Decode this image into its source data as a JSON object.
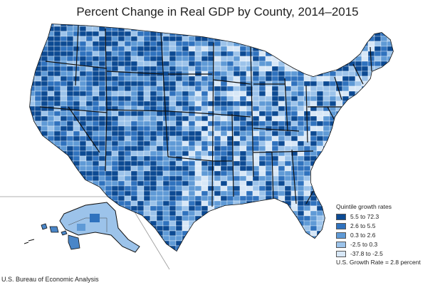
{
  "title": "Percent Change in Real GDP by County, 2014–2015",
  "source": "U.S. Bureau of Economic Analysis",
  "legend": {
    "heading": "Quintile growth rates",
    "items": [
      {
        "label": "5.5 to 72.3",
        "color": "#0c4a93"
      },
      {
        "label": "2.6 to 5.5",
        "color": "#2f72be"
      },
      {
        "label": "0.3 to 2.6",
        "color": "#5f9ad6"
      },
      {
        "label": "-2.5 to 0.3",
        "color": "#9cc3ea"
      },
      {
        "label": "-37.8 to -2.5",
        "color": "#d7e7f7"
      }
    ],
    "footer": "U.S. Growth Rate = 2.8 percent"
  }
}
